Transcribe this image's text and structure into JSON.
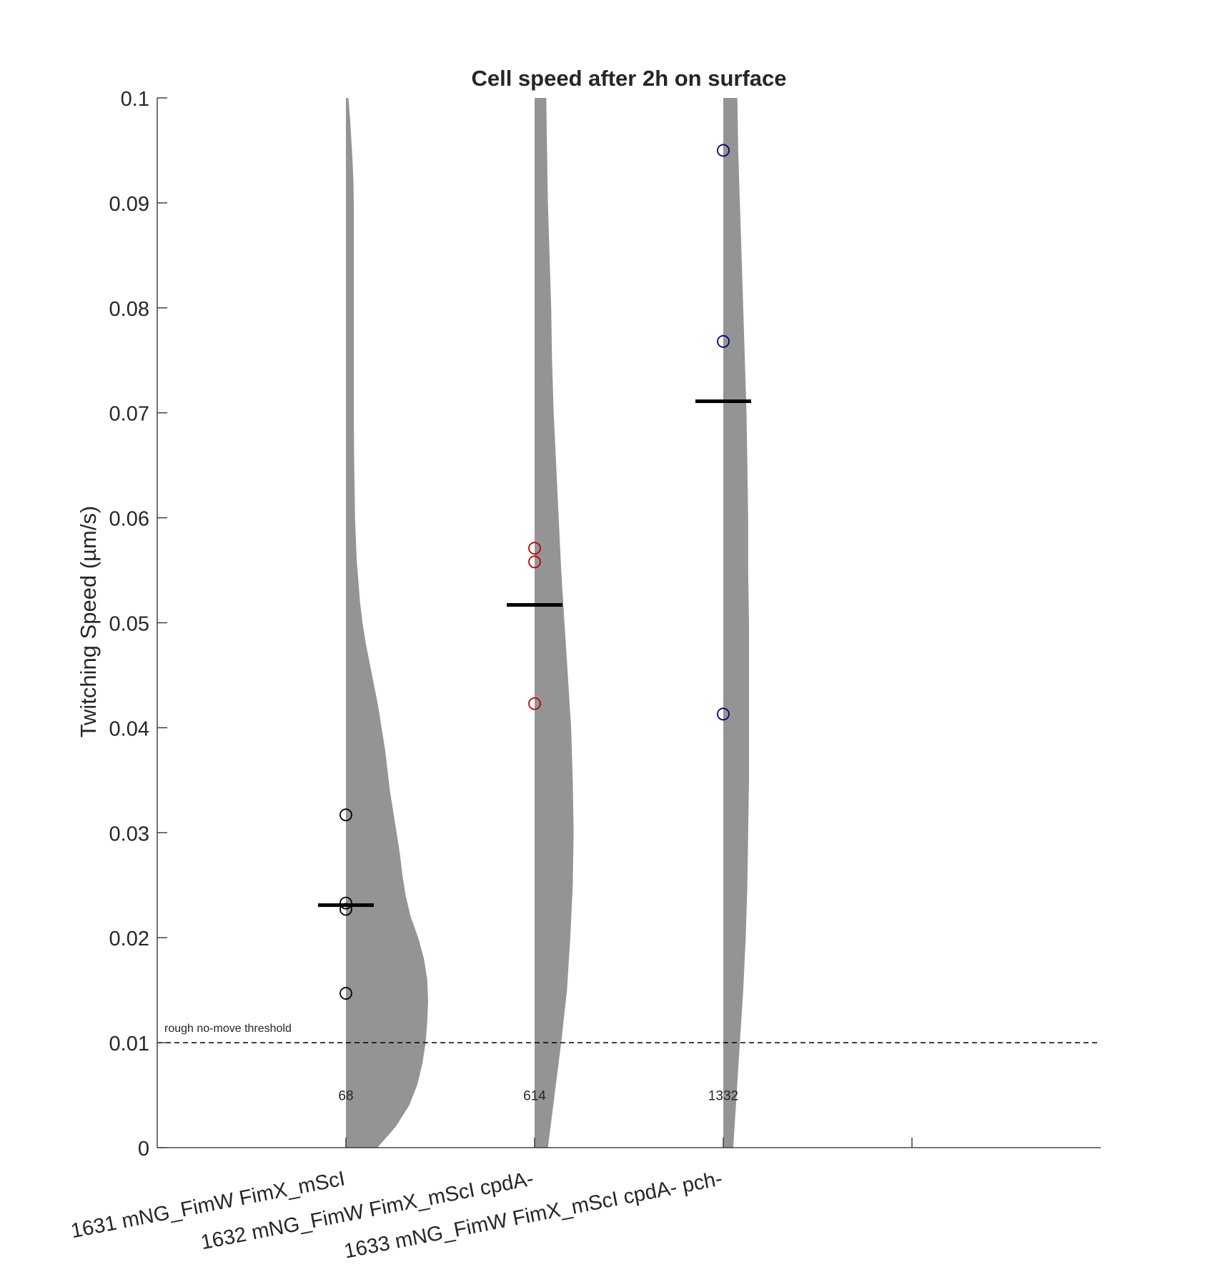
{
  "chart_data": {
    "type": "violin",
    "title": "Cell speed after 2h on surface",
    "xlabel": "",
    "ylabel": "Twitching Speed (µm/s)",
    "ylim": [
      0,
      0.1
    ],
    "yticks": [
      "0",
      "0.01",
      "0.02",
      "0.03",
      "0.04",
      "0.05",
      "0.06",
      "0.07",
      "0.08",
      "0.09",
      "0.1"
    ],
    "grid": false,
    "categories": [
      "1631 mNG_FimW FimX_mScI",
      "1632 mNG_FimW FimX_mScI cpdA-",
      "1633 mNG_FimW FimX_mScI cpdA- pch-"
    ],
    "series": [
      {
        "category": "1631 mNG_FimW FimX_mScI",
        "count_label": "68",
        "mean": 0.0231,
        "points": [
          0.0317,
          0.0233,
          0.0227,
          0.0147
        ],
        "point_color": "#000000",
        "density": [
          [
            0.0,
            0.038
          ],
          [
            0.002,
            0.06
          ],
          [
            0.004,
            0.076
          ],
          [
            0.006,
            0.086
          ],
          [
            0.008,
            0.092
          ],
          [
            0.01,
            0.096
          ],
          [
            0.012,
            0.098
          ],
          [
            0.014,
            0.099
          ],
          [
            0.016,
            0.098
          ],
          [
            0.018,
            0.094
          ],
          [
            0.02,
            0.087
          ],
          [
            0.022,
            0.078
          ],
          [
            0.024,
            0.072
          ],
          [
            0.026,
            0.068
          ],
          [
            0.028,
            0.065
          ],
          [
            0.03,
            0.061
          ],
          [
            0.032,
            0.057
          ],
          [
            0.034,
            0.053
          ],
          [
            0.036,
            0.05
          ],
          [
            0.038,
            0.047
          ],
          [
            0.04,
            0.043
          ],
          [
            0.042,
            0.039
          ],
          [
            0.044,
            0.034
          ],
          [
            0.046,
            0.029
          ],
          [
            0.048,
            0.024
          ],
          [
            0.05,
            0.02
          ],
          [
            0.052,
            0.017
          ],
          [
            0.054,
            0.015
          ],
          [
            0.056,
            0.013
          ],
          [
            0.058,
            0.012
          ],
          [
            0.06,
            0.011
          ],
          [
            0.065,
            0.01
          ],
          [
            0.07,
            0.0095
          ],
          [
            0.075,
            0.0095
          ],
          [
            0.08,
            0.0095
          ],
          [
            0.085,
            0.0095
          ],
          [
            0.09,
            0.0095
          ],
          [
            0.092,
            0.009
          ],
          [
            0.094,
            0.008
          ],
          [
            0.096,
            0.0065
          ],
          [
            0.098,
            0.005
          ],
          [
            0.1,
            0.003
          ]
        ]
      },
      {
        "category": "1632 mNG_FimW FimX_mScI cpdA-",
        "count_label": "614",
        "mean": 0.0517,
        "points": [
          0.0571,
          0.0558,
          0.0423
        ],
        "point_color": "#c00000",
        "density": [
          [
            0.0,
            0.016
          ],
          [
            0.005,
            0.024
          ],
          [
            0.01,
            0.032
          ],
          [
            0.015,
            0.039
          ],
          [
            0.02,
            0.043
          ],
          [
            0.025,
            0.046
          ],
          [
            0.03,
            0.047
          ],
          [
            0.035,
            0.046
          ],
          [
            0.04,
            0.044
          ],
          [
            0.045,
            0.04
          ],
          [
            0.05,
            0.036
          ],
          [
            0.055,
            0.032
          ],
          [
            0.06,
            0.029
          ],
          [
            0.065,
            0.026
          ],
          [
            0.07,
            0.023
          ],
          [
            0.075,
            0.021
          ],
          [
            0.08,
            0.02
          ],
          [
            0.085,
            0.018
          ],
          [
            0.09,
            0.016
          ],
          [
            0.095,
            0.015
          ],
          [
            0.1,
            0.014
          ]
        ]
      },
      {
        "category": "1633 mNG_FimW FimX_mScI cpdA- pch-",
        "count_label": "1332",
        "mean": 0.0711,
        "points": [
          0.095,
          0.0768,
          0.0413
        ],
        "point_color": "#000080",
        "density": [
          [
            0.0,
            0.012
          ],
          [
            0.005,
            0.016
          ],
          [
            0.01,
            0.02
          ],
          [
            0.015,
            0.024
          ],
          [
            0.02,
            0.027
          ],
          [
            0.025,
            0.029
          ],
          [
            0.03,
            0.03
          ],
          [
            0.035,
            0.031
          ],
          [
            0.04,
            0.031
          ],
          [
            0.045,
            0.031
          ],
          [
            0.05,
            0.031
          ],
          [
            0.055,
            0.03
          ],
          [
            0.06,
            0.03
          ],
          [
            0.065,
            0.029
          ],
          [
            0.07,
            0.028
          ],
          [
            0.075,
            0.026
          ],
          [
            0.08,
            0.024
          ],
          [
            0.085,
            0.022
          ],
          [
            0.09,
            0.02
          ],
          [
            0.095,
            0.018
          ],
          [
            0.1,
            0.017
          ]
        ]
      }
    ],
    "reference_line": {
      "y": 0.01,
      "style": "dashed",
      "label": "rough no-move threshold"
    },
    "colors": {
      "violin_fill": "#949494",
      "mean_line": "#000000",
      "axis": "#262626",
      "threshold_line": "#000000"
    }
  }
}
